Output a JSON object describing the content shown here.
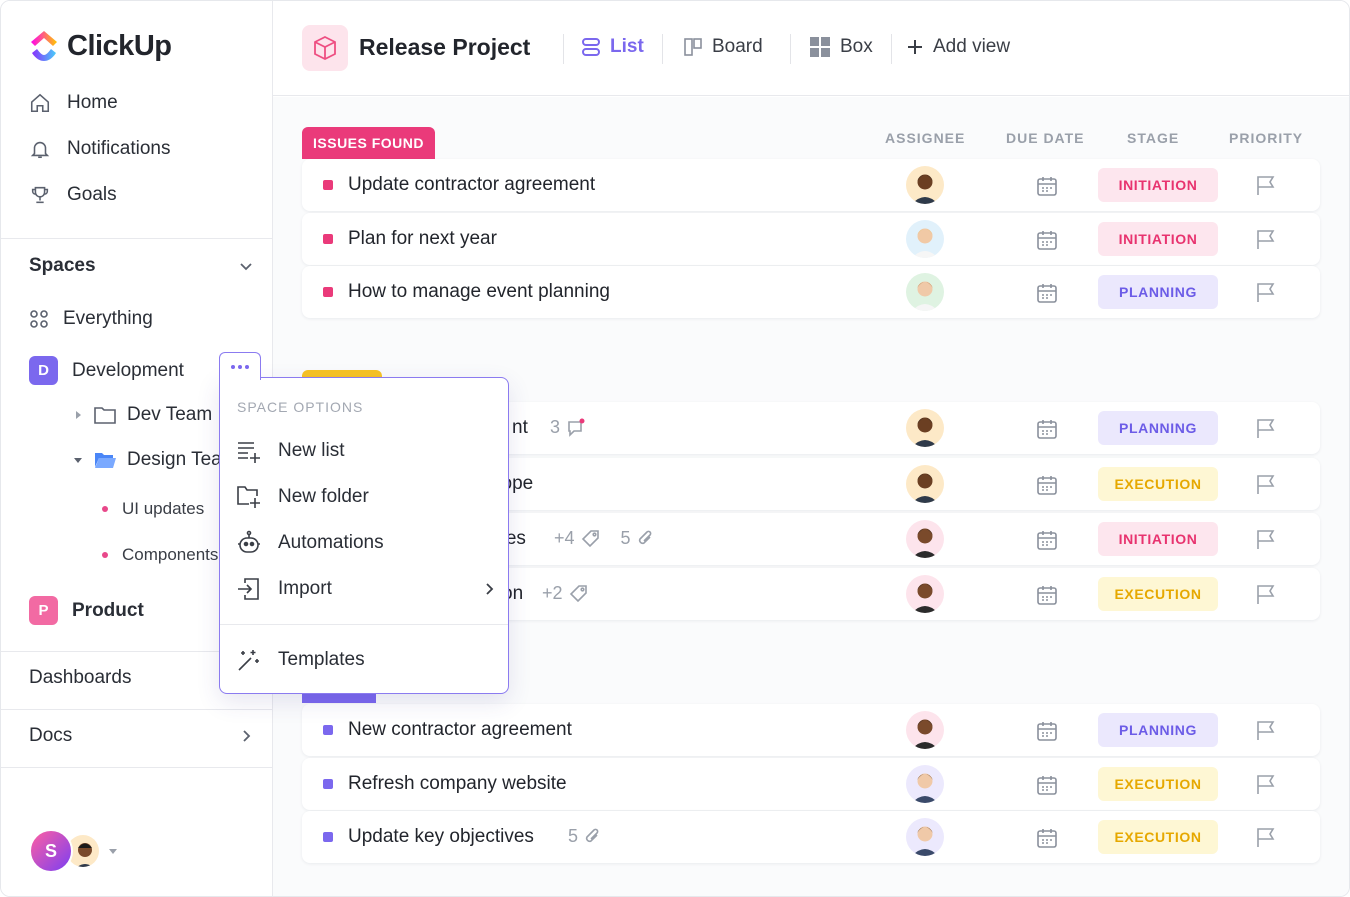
{
  "app": {
    "name": "ClickUp"
  },
  "sidebar": {
    "nav": [
      {
        "label": "Home",
        "icon": "home-icon"
      },
      {
        "label": "Notifications",
        "icon": "bell-icon"
      },
      {
        "label": "Goals",
        "icon": "trophy-icon"
      }
    ],
    "spaces_title": "Spaces",
    "everything_label": "Everything",
    "development": {
      "badge": "D",
      "label": "Development",
      "color": "#7b68ee"
    },
    "dev_team_label": "Dev Team",
    "design_team_label": "Design Team",
    "design_lists": [
      "UI updates",
      "Components"
    ],
    "product": {
      "badge": "P",
      "label": "Product",
      "color": "#f26aa3"
    },
    "dashboards_label": "Dashboards",
    "docs_label": "Docs",
    "user_initial": "S"
  },
  "header": {
    "title": "Release Project",
    "views": [
      {
        "label": "List",
        "icon": "list-icon",
        "active": true
      },
      {
        "label": "Board",
        "icon": "board-icon",
        "active": false
      },
      {
        "label": "Box",
        "icon": "box-icon",
        "active": false
      }
    ],
    "add_view_label": "Add view"
  },
  "columns": {
    "assignee": "ASSIGNEE",
    "due_date": "DUE DATE",
    "stage": "STAGE",
    "priority": "PRIORITY"
  },
  "groups": [
    {
      "label": "ISSUES FOUND",
      "color": "#ea3a7a"
    },
    {
      "label": "",
      "color": "#f7c325"
    },
    {
      "label": "",
      "color": "#7b68ee"
    }
  ],
  "tasks": [
    {
      "name": "Update contractor agreement",
      "extra": "",
      "stage": "INITIATION"
    },
    {
      "name": "Plan for next year",
      "extra": "",
      "stage": "INITIATION"
    },
    {
      "name": "How to manage event planning",
      "extra": "",
      "stage": "PLANNING"
    },
    {
      "name": "nt",
      "extra": "3",
      "stage": "PLANNING"
    },
    {
      "name": "cope",
      "extra": "",
      "stage": "EXECUTION"
    },
    {
      "name": "rces",
      "extra": "+4",
      "extra2": "5",
      "stage": "INITIATION"
    },
    {
      "name": "on",
      "extra": "+2",
      "stage": "EXECUTION"
    },
    {
      "name": "New contractor agreement",
      "extra": "",
      "stage": "PLANNING"
    },
    {
      "name": "Refresh company website",
      "extra": "",
      "stage": "EXECUTION"
    },
    {
      "name": "Update key objectives",
      "extra": "5",
      "stage": "EXECUTION"
    }
  ],
  "stage_colors": {
    "INITIATION": {
      "bg": "#fde6ee",
      "fg": "#e8336f"
    },
    "PLANNING": {
      "bg": "#ebe8fd",
      "fg": "#6c5ce7"
    },
    "EXECUTION": {
      "bg": "#fef7d4",
      "fg": "#e6a800"
    }
  },
  "space_options": {
    "title": "SPACE OPTIONS",
    "items": [
      {
        "label": "New list",
        "icon": "new-list-icon"
      },
      {
        "label": "New folder",
        "icon": "new-folder-icon"
      },
      {
        "label": "Automations",
        "icon": "robot-icon"
      },
      {
        "label": "Import",
        "icon": "import-icon"
      },
      {
        "label": "Templates",
        "icon": "magic-wand-icon"
      }
    ]
  }
}
